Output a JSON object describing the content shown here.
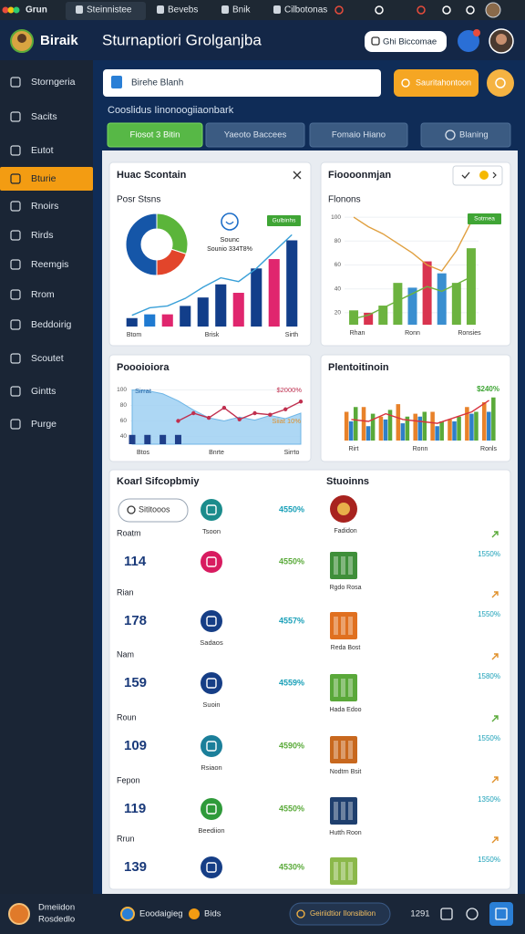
{
  "browser_tabs": [
    "Grun",
    "Steinnistee",
    "Bevebs",
    "Bnik",
    "Cilbotonas"
  ],
  "header": {
    "app_name": "Biraik",
    "title": "Sturnaptiori Grolganjba",
    "button": "Ghi Biccomae"
  },
  "sidebar": {
    "items": [
      "Storngeria",
      "Sacits",
      "Eutot",
      "Bturie",
      "Rnoirs",
      "Rirds",
      "Reemgis",
      "Rrom",
      "Beddoirig",
      "Scoutet",
      "Gintts",
      "Purge"
    ],
    "active": 3
  },
  "search": {
    "placeholder": "Birehe Blanh",
    "button": "Sauritahontoon"
  },
  "section_title": "Cooslidus Iinonoogiiaonbark",
  "tabs": {
    "items": [
      "Fiosot 3 Bitin",
      "Yaeoto Baccees",
      "Fomaio Hiano",
      "Blaning"
    ],
    "active": 0
  },
  "cards": [
    {
      "title": "Huac Scontain",
      "subtitle": "Posr Stsns",
      "donut": {
        "values": [
          30,
          20,
          50
        ],
        "colors": [
          "#5bb53a",
          "#e2452b",
          "#1556a8"
        ]
      },
      "legend": {
        "title": "Sounc",
        "value": "Sounio 334T8%"
      },
      "badge": "Gulbinhs",
      "x_labels": [
        "Btom",
        "Brisk",
        "Sirth"
      ],
      "ylim": [
        0,
        110
      ],
      "bars": {
        "values": [
          9,
          13,
          13,
          22,
          31,
          45,
          36,
          62,
          72,
          92
        ],
        "colors": [
          "#123e8a",
          "#1f7ad1",
          "#e0266e",
          "#123e8a",
          "#123e8a",
          "#123e8a",
          "#e0266e",
          "#123e8a",
          "#e0266e",
          "#123e8a"
        ]
      },
      "lines": [
        {
          "values": [
            12,
            20,
            22,
            30,
            42,
            52,
            48,
            62,
            80,
            98
          ],
          "color": "#3aa0d8"
        }
      ]
    },
    {
      "title": "Fioooonmjan",
      "subtitle": "Flonons",
      "badge": "Sotrnea",
      "x_labels": [
        "Rhan",
        "Ronn",
        "Ronsies"
      ],
      "ylim": [
        10,
        110
      ],
      "yticks": [
        20,
        40,
        60,
        80,
        100
      ],
      "bars": {
        "values": [
          22,
          20,
          26,
          45,
          41,
          63,
          53,
          45,
          74
        ],
        "colors": [
          "#6cb33f",
          "#d9344f",
          "#6cb33f",
          "#6cb33f",
          "#3a8fd0",
          "#d9344f",
          "#3a8fd0",
          "#6cb33f",
          "#6cb33f"
        ]
      },
      "lines": [
        {
          "values": [
            100,
            92,
            86,
            78,
            70,
            60,
            55,
            72,
            96
          ],
          "color": "#e0a040"
        },
        {
          "values": [
            15,
            18,
            24,
            30,
            36,
            42,
            38,
            44,
            50
          ],
          "color": "#6cb33f"
        }
      ]
    },
    {
      "title": "Poooioiora",
      "x_labels": [
        "Btos",
        "Bnrte",
        "Sirrto"
      ],
      "ylim": [
        30,
        110
      ],
      "yticks": [
        40,
        60,
        80,
        100
      ],
      "area": {
        "values": [
          100,
          99,
          95,
          86,
          74,
          64,
          60,
          65,
          61,
          67,
          63,
          70
        ],
        "color": "#9fd0f2"
      },
      "lines": [
        {
          "values": [
            null,
            null,
            null,
            60,
            70,
            64,
            77,
            62,
            70,
            68,
            75,
            85
          ],
          "color": "#c0304f"
        }
      ],
      "bars": {
        "values": [
          42,
          42,
          42,
          42
        ],
        "colors": [
          "#1f3f8a",
          "#1f3f8a",
          "#1f3f8a",
          "#1f3f8a"
        ]
      },
      "notes": [
        "Sirrat",
        "$2000%",
        "Siiat 10%"
      ],
      "note_colors": [
        "#1f5fa0",
        "#c0304f",
        "#e0902a"
      ]
    },
    {
      "title": "Plentoitinoin",
      "badge": "$240%",
      "x_labels": [
        "Rirt",
        "Ronn",
        "Ronls"
      ],
      "ylim": [
        0,
        60
      ],
      "bar_series": [
        {
          "color": "#e8822a",
          "values": [
            30,
            35,
            25,
            38,
            28,
            30,
            22,
            35,
            40
          ]
        },
        {
          "color": "#2f7fc8",
          "values": [
            20,
            15,
            22,
            18,
            25,
            15,
            20,
            28,
            30
          ]
        },
        {
          "color": "#5aaa3a",
          "values": [
            35,
            28,
            32,
            25,
            30,
            20,
            25,
            30,
            45
          ]
        }
      ],
      "lines": [
        {
          "values": [
            22,
            20,
            28,
            22,
            20,
            18,
            24,
            30,
            42
          ],
          "color": "#d8343f"
        }
      ]
    }
  ],
  "summary": {
    "title": "Koarl Sifcopbmiy",
    "search": "Sititooos",
    "rows": [
      {
        "caption": "Tsoon",
        "percent": "4550%",
        "color": "#1b8c8c",
        "percent_color": "#1aa0b8"
      },
      {
        "label": "Roatm",
        "value": 114,
        "percent": "4550%",
        "color": "#d81b60",
        "percent_color": "#5aaa3a"
      },
      {
        "label": "Rian",
        "value": 178,
        "caption": "Sadaos",
        "percent": "4557%",
        "color": "#163e86",
        "percent_color": "#1aa0b8"
      },
      {
        "label": "Nam",
        "value": 159,
        "caption": "Suoin",
        "percent": "4559%",
        "color": "#163e86",
        "percent_color": "#1aa0b8"
      },
      {
        "label": "Roun",
        "value": 109,
        "caption": "Rsiaon",
        "percent": "4590%",
        "color": "#1b7f9a",
        "percent_color": "#5aaa3a"
      },
      {
        "label": "Fepon",
        "value": 119,
        "caption": "Beediion",
        "percent": "4550%",
        "color": "#2f9a3a",
        "percent_color": "#5aaa3a"
      },
      {
        "label": "Rrun",
        "value": 139,
        "percent": "4530%",
        "color": "#163e86",
        "percent_color": "#5aaa3a"
      }
    ]
  },
  "featured": {
    "title": "Stuoinns",
    "items": [
      {
        "caption": "Fadidon",
        "color": "#a8231f"
      },
      {
        "caption": "Rgdo Rosa",
        "percent": "1550%",
        "color": "#3f8f3a"
      },
      {
        "caption": "Reda Bost",
        "percent": "1550%",
        "color": "#e07020"
      },
      {
        "caption": "Hada Edoo",
        "percent": "1580%",
        "color": "#5aa83a"
      },
      {
        "caption": "Nodtrn Bsit",
        "percent": "1550%",
        "color": "#c8681e"
      },
      {
        "caption": "Hutth Roon",
        "percent": "1350%",
        "color": "#1f3f6e"
      },
      {
        "percent": "1550%",
        "color": "#8bb84a"
      }
    ]
  },
  "footer": {
    "user_line1": "Dmeiidon",
    "user_line2": "Rosdedlo",
    "app": "Eoodaigieg",
    "link": "Bids",
    "search": "Geiriidtior Ilonsiblion",
    "time": "1291"
  }
}
